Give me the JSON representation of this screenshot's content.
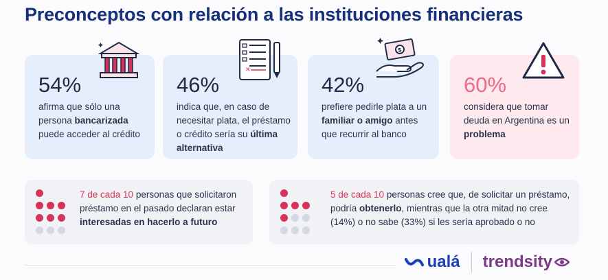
{
  "title": "Preconceptos con relación a las instituciones financieras",
  "cards": [
    {
      "pct": "54%",
      "parts": [
        "afirma que sólo una persona ",
        "bancarizada",
        " puede acceder al crédito"
      ],
      "icon": "bank-icon"
    },
    {
      "pct": "46%",
      "parts": [
        "indica que, en caso de necesitar plata, el préstamo o crédito sería su ",
        "última alternativa",
        ""
      ],
      "icon": "document-pen-icon"
    },
    {
      "pct": "42%",
      "parts": [
        "prefiere pedirle plata a un ",
        "familiar o amigo",
        " antes que recurrir al banco"
      ],
      "icon": "money-hand-icon"
    },
    {
      "pct": "60%",
      "parts": [
        "considera que tomar deuda en Argentina es un ",
        "problema",
        ""
      ],
      "icon": "warning-icon"
    }
  ],
  "boxes": [
    {
      "highlight": "7 de cada 10",
      "parts": [
        " personas que solicitaron préstamo en el pasado declaran estar ",
        "interesadas en hacerlo a futuro",
        ""
      ],
      "filled": 7,
      "total": 10
    },
    {
      "highlight": "5 de cada 10",
      "parts": [
        " personas cree que, de solicitar un préstamo, podría ",
        "obtenerlo",
        ", mientras que la otra mitad no cree (14%) o no sabe (33%) si les sería aprobado o no"
      ],
      "filled": 5,
      "total": 10
    }
  ],
  "logos": {
    "uala": "ualá",
    "trendsity": "trendsity"
  },
  "colors": {
    "title": "#17307a",
    "card_bg": "#e6eefc",
    "alert_bg": "#fde9ee",
    "alert_pct": "#ee6a86",
    "dot_filled": "#d4345a",
    "dot_empty": "#d5d8e2"
  }
}
